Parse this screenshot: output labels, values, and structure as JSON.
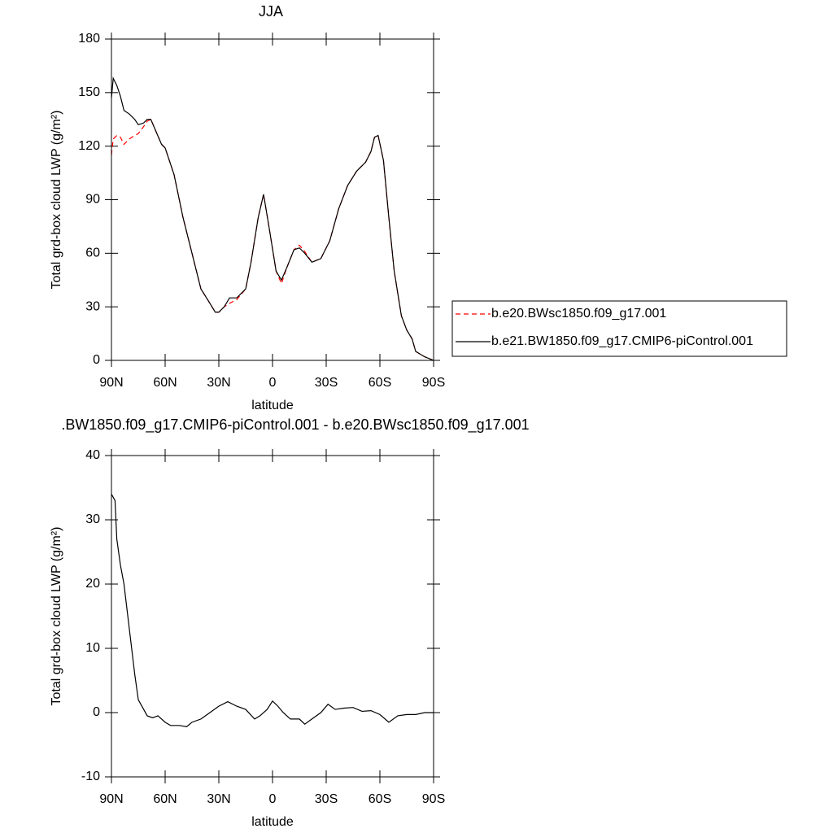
{
  "chart_data": [
    {
      "type": "line",
      "title": "JJA",
      "xlabel": "latitude",
      "ylabel": "Total grd-box cloud LWP (g/m²)",
      "x": [
        90,
        89,
        87,
        85,
        83,
        80,
        77,
        75,
        72,
        70,
        68,
        65,
        62,
        60,
        55,
        50,
        45,
        40,
        35,
        32,
        30,
        27,
        24,
        20,
        15,
        12,
        8,
        5,
        2,
        -2,
        -5,
        -8,
        -12,
        -15,
        -18,
        -22,
        -27,
        -32,
        -37,
        -42,
        -47,
        -52,
        -55,
        -57,
        -59,
        -62,
        -65,
        -68,
        -72,
        -75,
        -78,
        -80,
        -85,
        -90
      ],
      "series": [
        {
          "name": "b.e20.BWsc1850.f09_g17.001",
          "color": "#ff0000",
          "linestyle": "dashed",
          "values": [
            115,
            124,
            126,
            125,
            121,
            124,
            126,
            127,
            131,
            134,
            135,
            128,
            121,
            119,
            104,
            80,
            60,
            40,
            32,
            27,
            27,
            30,
            32,
            34,
            40,
            55,
            80,
            93,
            75,
            50,
            43,
            52,
            62,
            64.5,
            61,
            55,
            57,
            67,
            85,
            98,
            106,
            111,
            117,
            125,
            126,
            112,
            80,
            50,
            25,
            17,
            12,
            5,
            2,
            0
          ]
        },
        {
          "name": "b.e21.BW1850.f09_g17.CMIP6-piControl.001",
          "color": "#000000",
          "linestyle": "solid",
          "values": [
            147,
            158,
            154,
            148,
            140,
            138,
            135,
            132,
            133,
            135,
            135,
            128,
            121,
            119,
            104,
            80,
            60,
            40,
            32,
            27,
            27,
            30,
            35,
            35,
            40,
            55,
            80,
            93,
            75,
            50,
            45,
            52,
            62,
            63,
            60,
            55,
            57,
            67,
            85,
            98,
            106,
            111,
            117,
            125,
            126,
            112,
            80,
            50,
            25,
            17,
            12,
            5,
            2,
            0
          ]
        }
      ],
      "xlim": [
        90,
        -90
      ],
      "xticks": [
        {
          "value": 90,
          "label": "90N"
        },
        {
          "value": 60,
          "label": "60N"
        },
        {
          "value": 30,
          "label": "30N"
        },
        0,
        {
          "value": -30,
          "label": "30S"
        },
        {
          "value": -60,
          "label": "60S"
        },
        {
          "value": -90,
          "label": "90S"
        }
      ],
      "ylim": [
        0,
        180
      ],
      "yticks": [
        0,
        30,
        60,
        90,
        120,
        150,
        180
      ],
      "legend": "outside-right"
    },
    {
      "type": "line",
      "title": ".BW1850.f09_g17.CMIP6-piControl.001 - b.e20.BWsc1850.f09_g17.001",
      "xlabel": "latitude",
      "ylabel": "Total grd-box cloud LWP (g/m²)",
      "x": [
        90,
        88,
        87,
        85,
        83,
        80,
        77,
        75,
        73,
        70,
        67,
        64,
        60,
        57,
        52,
        48,
        45,
        40,
        35,
        30,
        25,
        20,
        15,
        10,
        7,
        3,
        0,
        -3,
        -6,
        -10,
        -15,
        -18,
        -22,
        -27,
        -31,
        -35,
        -40,
        -45,
        -50,
        -55,
        -60,
        -65,
        -70,
        -75,
        -80,
        -85,
        -90
      ],
      "series": [
        {
          "color": "#000000",
          "linestyle": "solid",
          "values": [
            34,
            33,
            27,
            23,
            20,
            13,
            6,
            2,
            1,
            -0.5,
            -0.8,
            -0.5,
            -1.5,
            -2,
            -2,
            -2.2,
            -1.5,
            -1,
            0,
            1,
            1.7,
            1,
            0.5,
            -1,
            -0.5,
            0.5,
            1.8,
            1,
            0,
            -1,
            -1,
            -1.8,
            -1,
            0,
            1.3,
            0.5,
            0.7,
            0.8,
            0.2,
            0.3,
            -0.3,
            -1.5,
            -0.5,
            -0.3,
            -0.3,
            0,
            0
          ]
        }
      ],
      "xlim": [
        90,
        -90
      ],
      "xticks": [
        {
          "value": 90,
          "label": "90N"
        },
        {
          "value": 60,
          "label": "60N"
        },
        {
          "value": 30,
          "label": "30N"
        },
        0,
        {
          "value": -30,
          "label": "30S"
        },
        {
          "value": -60,
          "label": "60S"
        },
        {
          "value": -90,
          "label": "90S"
        }
      ],
      "ylim": [
        -10,
        40
      ],
      "yticks": [
        -10,
        0,
        10,
        20,
        30,
        40
      ]
    }
  ]
}
